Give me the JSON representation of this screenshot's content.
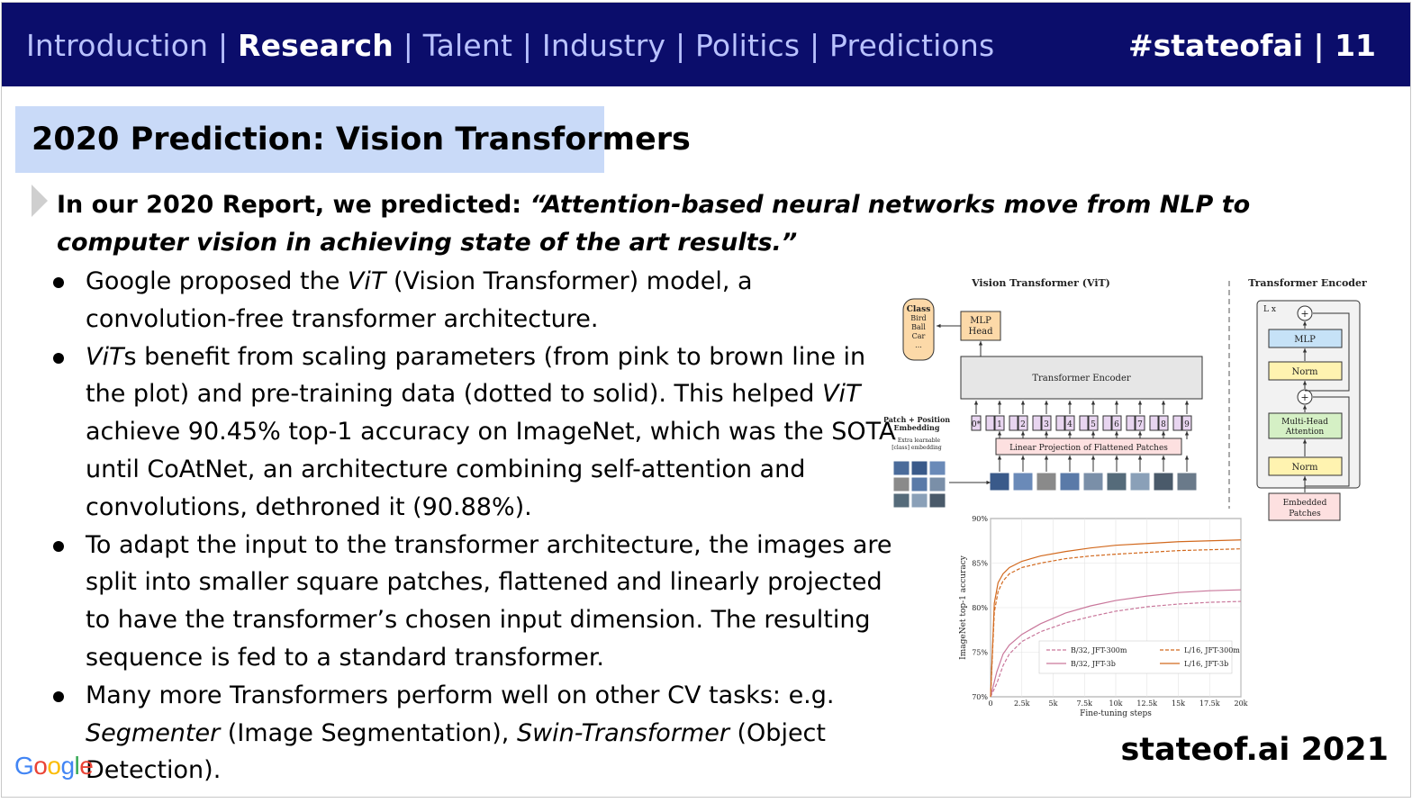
{
  "nav": {
    "items": [
      "Introduction",
      "Research",
      "Talent",
      "Industry",
      "Politics",
      "Predictions"
    ],
    "separator": "|",
    "tagline": "#stateofai | 11"
  },
  "slide": {
    "title": "2020 Prediction: Vision Transformers",
    "lead_prefix": "In our 2020 Report, we predicted: ",
    "lead_quote": "“Attention-based neural networks move from NLP to computer vision in achieving state of the art results.”",
    "bullets": [
      {
        "parts": [
          {
            "t": "Google proposed the ",
            "i": false
          },
          {
            "t": "ViT",
            "i": true
          },
          {
            "t": " (Vision Transformer) model, a convolution-free transformer architecture.",
            "i": false
          }
        ]
      },
      {
        "parts": [
          {
            "t": "ViT",
            "i": true
          },
          {
            "t": "s benefit from scaling parameters (from pink to brown line in the plot) and pre-training data (dotted to solid). This helped ",
            "i": false
          },
          {
            "t": "ViT",
            "i": true
          },
          {
            "t": " achieve 90.45% top-1 accuracy on ImageNet, which was the SOTA until CoAtNet, an architecture combining self-attention and convolutions, dethroned it (90.88%).",
            "i": false
          }
        ]
      },
      {
        "parts": [
          {
            "t": "To adapt the input to the transformer architecture, the images are split into smaller square patches, flattened and linearly projected to have the transformer’s chosen input dimension. The resulting sequence is fed to a standard transformer.",
            "i": false
          }
        ]
      },
      {
        "parts": [
          {
            "t": "Many more Transformers perform well on other CV tasks: e.g. ",
            "i": false
          },
          {
            "t": "Segmenter",
            "i": true
          },
          {
            "t": " (Image Segmentation), ",
            "i": false
          },
          {
            "t": "Swin-Transformer",
            "i": true
          },
          {
            "t": " (Object Detection).",
            "i": false
          }
        ]
      }
    ]
  },
  "footer": {
    "google_logo": "Google",
    "google_colors": [
      "#4285F4",
      "#EA4335",
      "#FBBC05",
      "#4285F4",
      "#34A853",
      "#EA4335"
    ],
    "brand": "stateof.ai 2021"
  },
  "diagram": {
    "vit_title": "Vision Transformer (ViT)",
    "encoder_title": "Transformer Encoder",
    "class_box": [
      "Class",
      "Bird",
      "Ball",
      "Car",
      "..."
    ],
    "mlp_head": [
      "MLP",
      "Head"
    ],
    "transformer_encoder": "Transformer Encoder",
    "patch_embedding_label": [
      "Patch + Position",
      "Embedding"
    ],
    "extra_learnable": [
      "* Extra learnable",
      "[class] embedding"
    ],
    "linear_projection": "Linear Projection of Flattened Patches",
    "tokens": [
      "0",
      "1",
      "2",
      "3",
      "4",
      "5",
      "6",
      "7",
      "8",
      "9"
    ],
    "encoder_blocks": {
      "repeat": "L x",
      "mlp": "MLP",
      "norm": "Norm",
      "attention": [
        "Multi-Head",
        "Attention"
      ],
      "embedded": [
        "Embedded",
        "Patches"
      ]
    },
    "colors": {
      "class_fill": "#fcd9a8",
      "encoder_fill": "#e6e6e6",
      "projection_fill": "#fde0e0",
      "token_fill": "#e8d5f0",
      "mlp_fill": "#c6e2f7",
      "norm_fill": "#fff3b0",
      "attention_fill": "#d5f0c5"
    }
  },
  "chart_data": {
    "type": "line",
    "xlabel": "Fine-tuning steps",
    "ylabel": "ImageNet top-1 accuracy",
    "xticks": [
      "0",
      "2.5k",
      "5k",
      "7.5k",
      "10k",
      "12.5k",
      "15k",
      "17.5k",
      "20k"
    ],
    "yticks": [
      "70%",
      "75%",
      "80%",
      "85%",
      "90%"
    ],
    "xlim": [
      0,
      20000
    ],
    "ylim": [
      70,
      90
    ],
    "legend_position": "bottom-right",
    "series": [
      {
        "name": "B/32, JFT-300m",
        "color": "#c9779b",
        "dash": true,
        "x": [
          0,
          500,
          1000,
          1500,
          2500,
          4000,
          6000,
          8000,
          10000,
          12500,
          15000,
          17500,
          20000
        ],
        "y": [
          70,
          71.5,
          73.5,
          74.8,
          76.2,
          77.3,
          78.3,
          79.0,
          79.6,
          80.1,
          80.4,
          80.6,
          80.7
        ]
      },
      {
        "name": "B/32, JFT-3b",
        "color": "#c9779b",
        "dash": false,
        "x": [
          0,
          500,
          1000,
          1500,
          2500,
          4000,
          6000,
          8000,
          10000,
          12500,
          15000,
          17500,
          20000
        ],
        "y": [
          70,
          72.8,
          74.8,
          75.8,
          77.0,
          78.2,
          79.4,
          80.2,
          80.8,
          81.3,
          81.7,
          81.9,
          82.0
        ]
      },
      {
        "name": "L/16, JFT-300m",
        "color": "#d2691e",
        "dash": true,
        "x": [
          0,
          300,
          600,
          1000,
          1500,
          2500,
          4000,
          6000,
          8000,
          10000,
          12500,
          15000,
          17500,
          20000
        ],
        "y": [
          70,
          79.5,
          81.8,
          83.0,
          83.8,
          84.5,
          85.0,
          85.5,
          85.8,
          86.0,
          86.2,
          86.4,
          86.5,
          86.6
        ]
      },
      {
        "name": "L/16, JFT-3b",
        "color": "#d2691e",
        "dash": false,
        "x": [
          0,
          300,
          600,
          1000,
          1500,
          2500,
          4000,
          6000,
          8000,
          10000,
          12500,
          15000,
          17500,
          20000
        ],
        "y": [
          70,
          80.5,
          82.8,
          83.8,
          84.5,
          85.2,
          85.8,
          86.3,
          86.7,
          87.0,
          87.2,
          87.4,
          87.5,
          87.6
        ]
      }
    ]
  }
}
